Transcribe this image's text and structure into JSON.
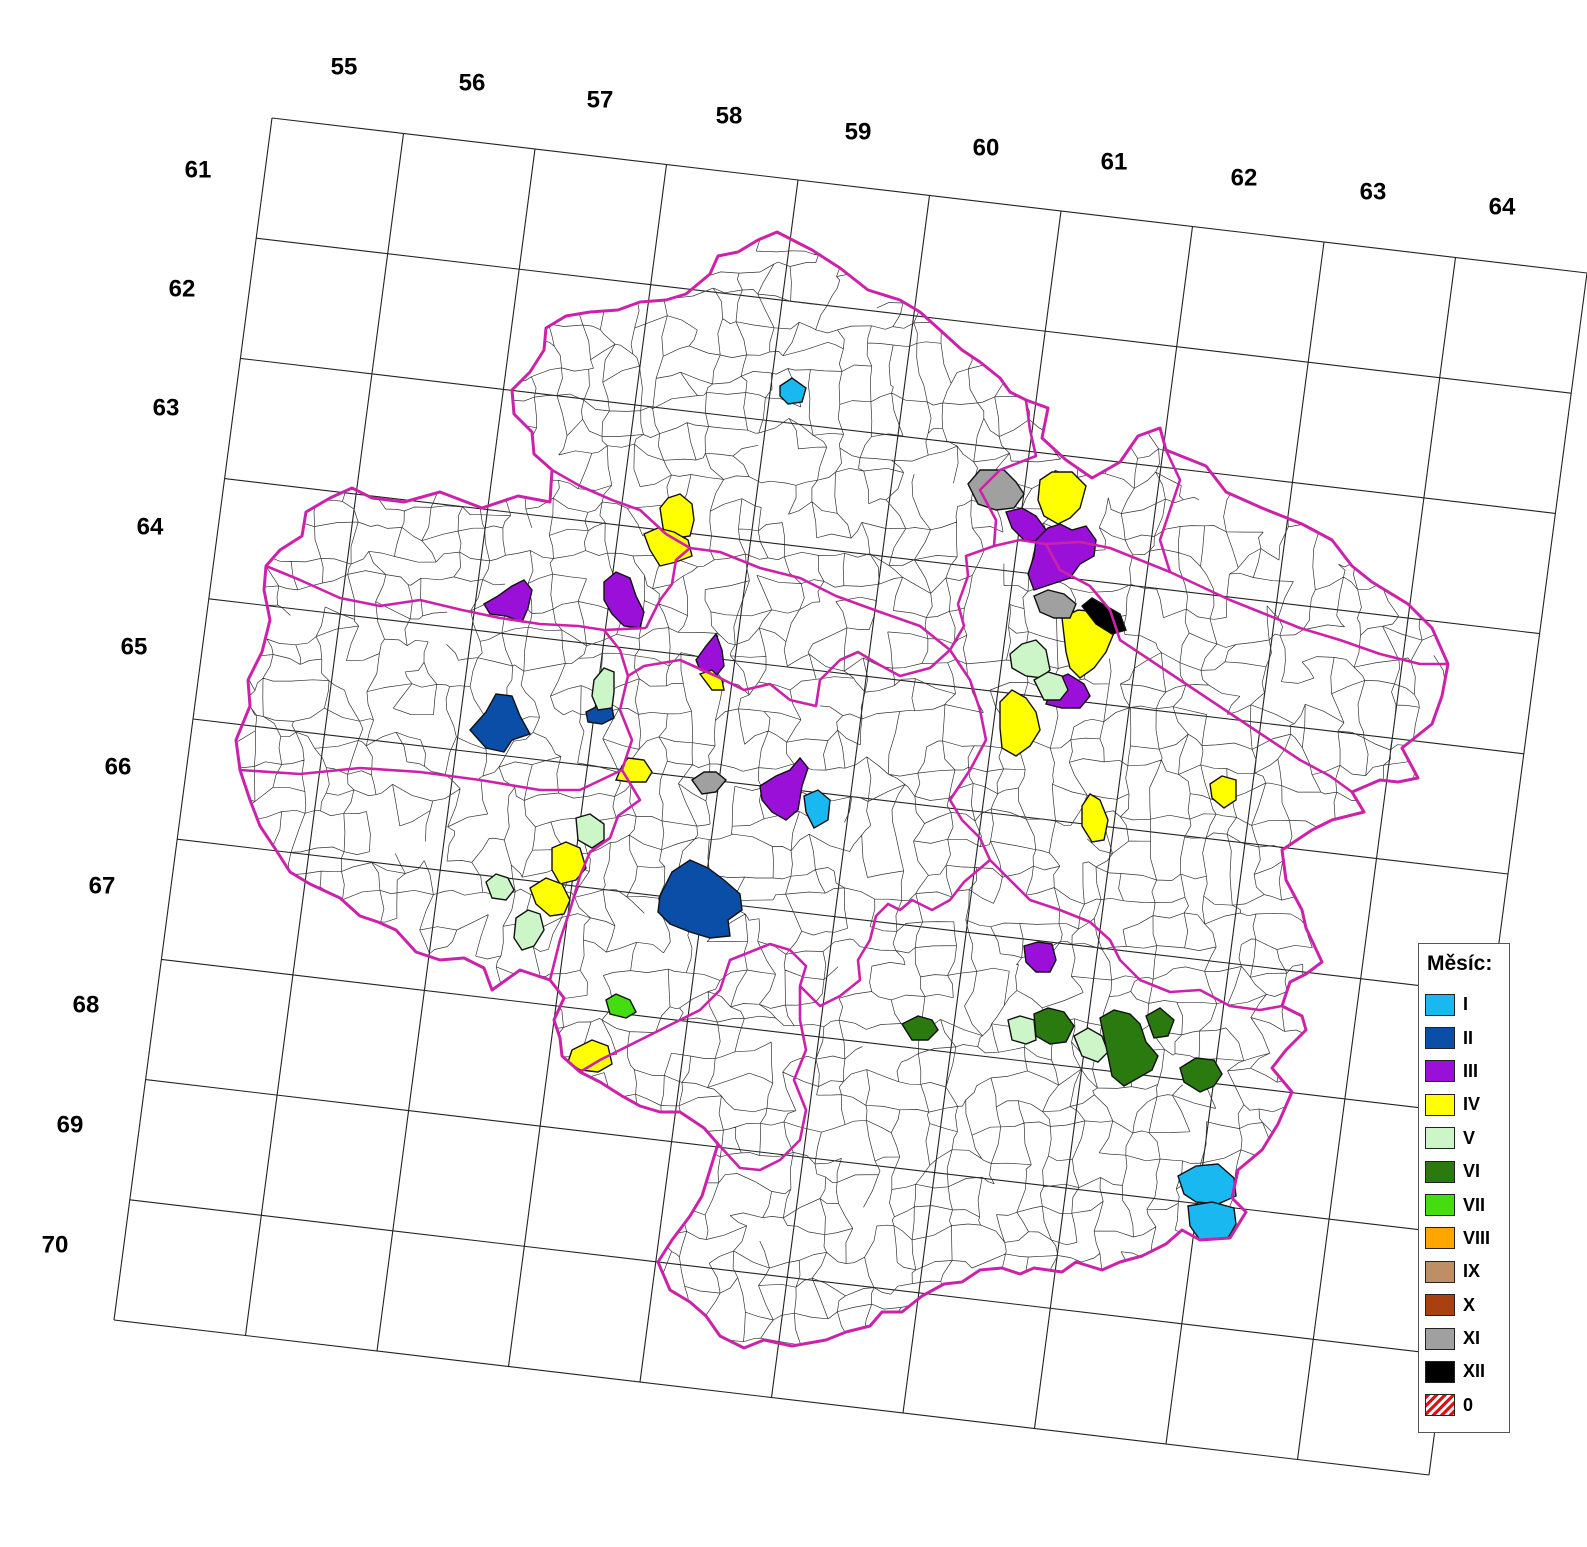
{
  "map": {
    "column_labels": [
      "55",
      "56",
      "57",
      "58",
      "59",
      "60",
      "61",
      "62",
      "63",
      "64"
    ],
    "row_labels": [
      "61",
      "62",
      "63",
      "64",
      "65",
      "66",
      "67",
      "68",
      "69",
      "70"
    ],
    "boundary_color": "#cc22aa",
    "grid_color": "#222222"
  },
  "legend": {
    "title": "Měsíc:",
    "items": [
      {
        "label": "I",
        "color": "#1ab8f0"
      },
      {
        "label": "II",
        "color": "#0a4ea8"
      },
      {
        "label": "III",
        "color": "#9a10d8"
      },
      {
        "label": "IV",
        "color": "#ffff00"
      },
      {
        "label": "V",
        "color": "#ccf5c8"
      },
      {
        "label": "VI",
        "color": "#2a7a10"
      },
      {
        "label": "VII",
        "color": "#44dd10"
      },
      {
        "label": "VIII",
        "color": "#ffa500"
      },
      {
        "label": "IX",
        "color": "#c08e64"
      },
      {
        "label": "X",
        "color": "#a84010"
      },
      {
        "label": "XI",
        "color": "#a0a0a0"
      },
      {
        "label": "XII",
        "color": "#000000"
      },
      {
        "label": "0",
        "color": "hatched-red"
      }
    ]
  },
  "regions": [
    {
      "month": "I"
    },
    {
      "month": "I"
    },
    {
      "month": "I"
    },
    {
      "month": "I"
    },
    {
      "month": "II"
    },
    {
      "month": "II"
    },
    {
      "month": "II"
    },
    {
      "month": "III"
    },
    {
      "month": "III"
    },
    {
      "month": "III"
    },
    {
      "month": "III"
    },
    {
      "month": "III"
    },
    {
      "month": "III"
    },
    {
      "month": "III"
    },
    {
      "month": "III"
    },
    {
      "month": "IV"
    },
    {
      "month": "IV"
    },
    {
      "month": "IV"
    },
    {
      "month": "IV"
    },
    {
      "month": "IV"
    },
    {
      "month": "IV"
    },
    {
      "month": "IV"
    },
    {
      "month": "IV"
    },
    {
      "month": "IV"
    },
    {
      "month": "IV"
    },
    {
      "month": "IV"
    },
    {
      "month": "IV"
    },
    {
      "month": "V"
    },
    {
      "month": "V"
    },
    {
      "month": "V"
    },
    {
      "month": "V"
    },
    {
      "month": "V"
    },
    {
      "month": "V"
    },
    {
      "month": "V"
    },
    {
      "month": "V"
    },
    {
      "month": "VI"
    },
    {
      "month": "VI"
    },
    {
      "month": "VI"
    },
    {
      "month": "VI"
    },
    {
      "month": "VI"
    },
    {
      "month": "VII"
    },
    {
      "month": "XI"
    },
    {
      "month": "XI"
    },
    {
      "month": "XI"
    },
    {
      "month": "XII"
    }
  ]
}
